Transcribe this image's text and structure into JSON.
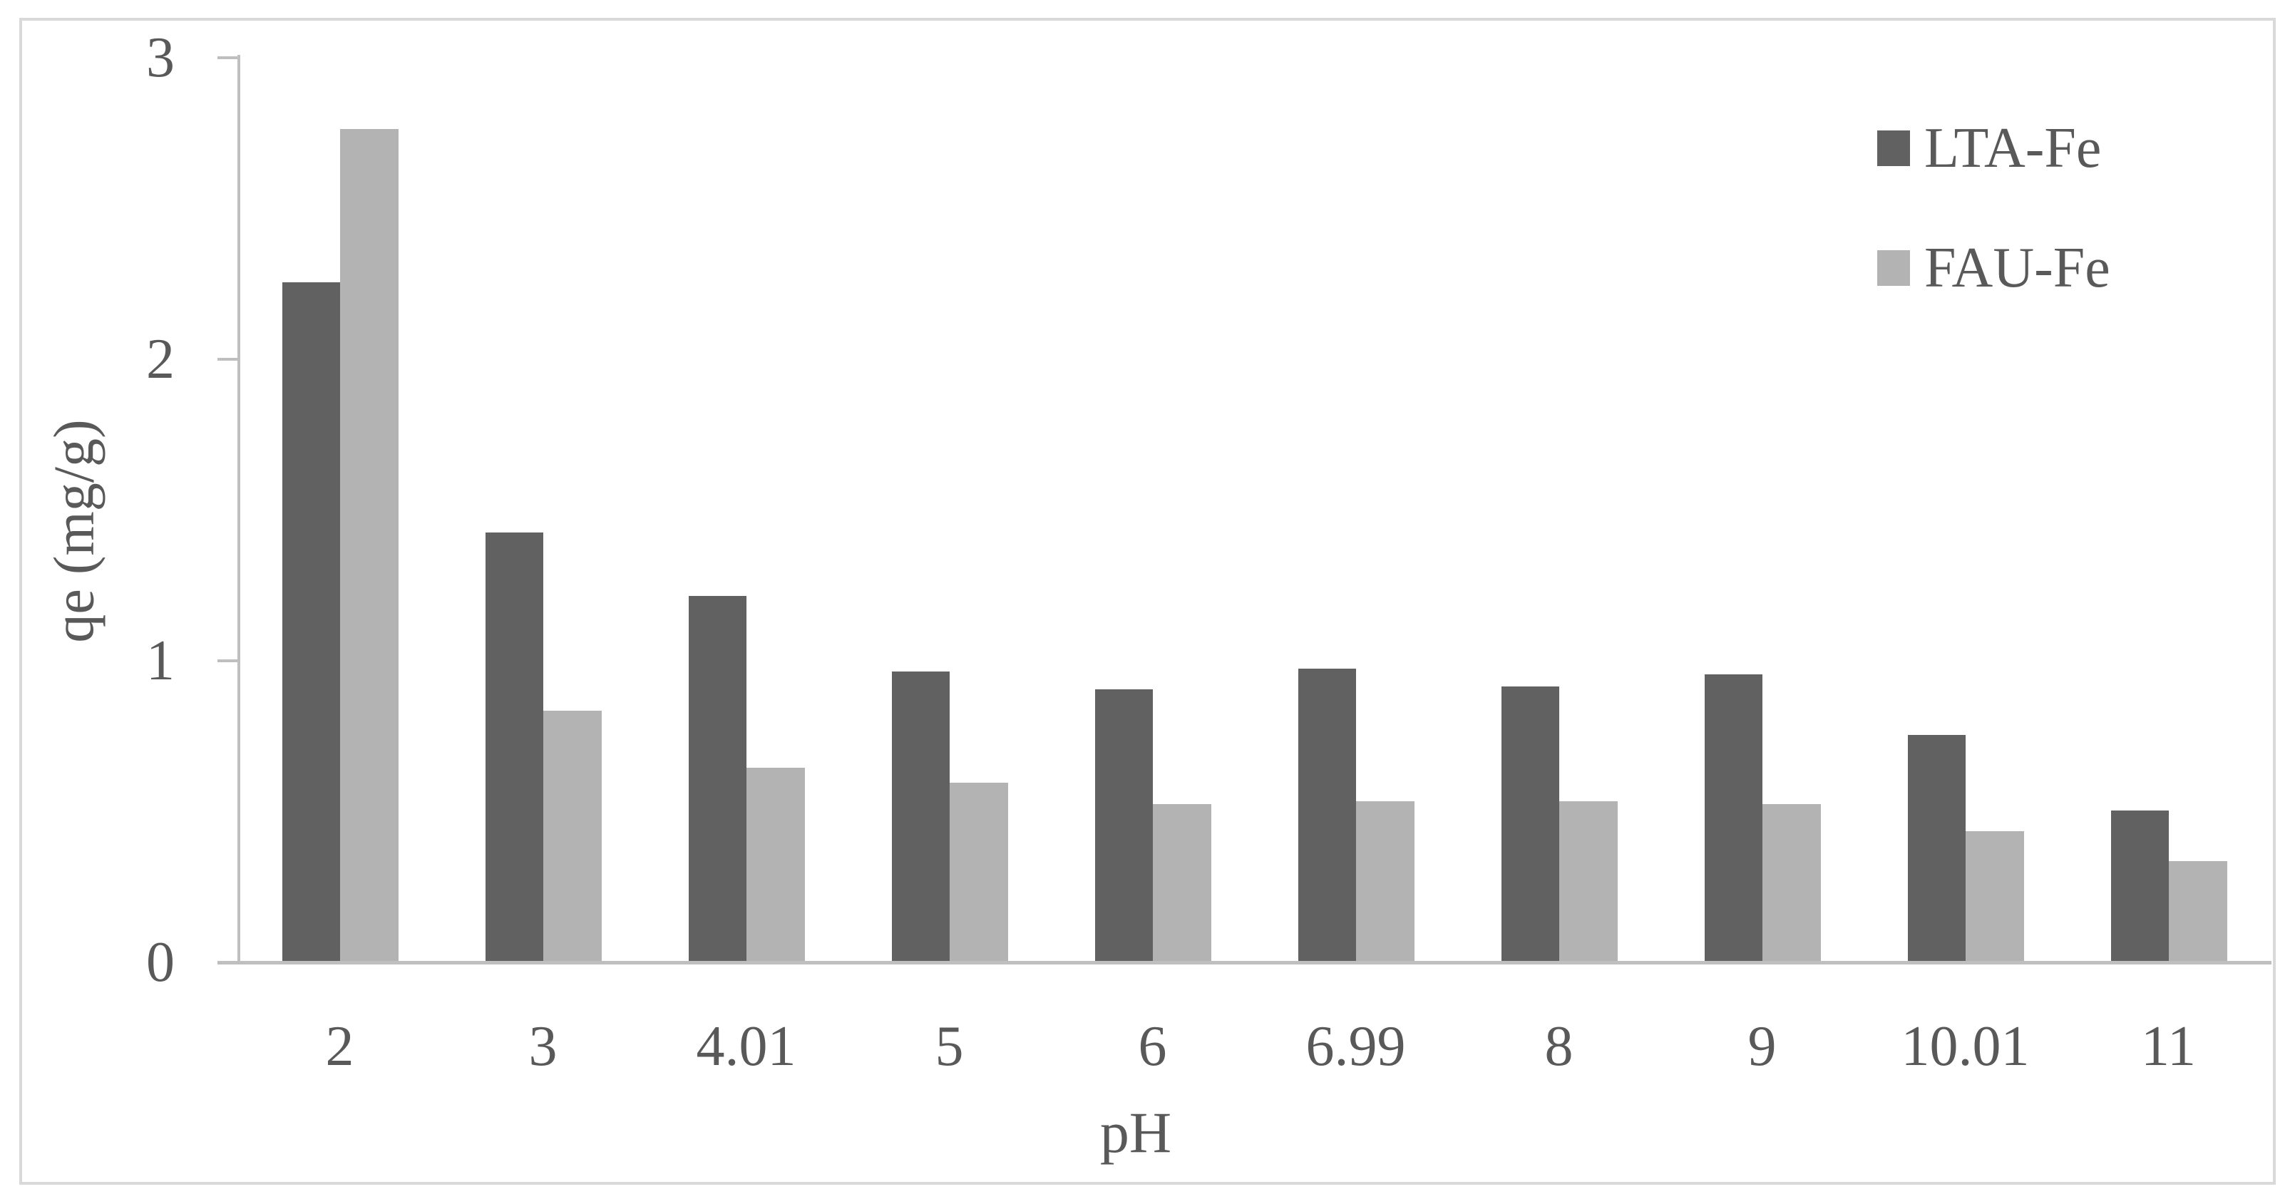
{
  "chart_data": {
    "type": "bar",
    "title": "",
    "xlabel": "pH",
    "ylabel": "qe (mg/g)",
    "categories": [
      "2",
      "3",
      "4.01",
      "5",
      "6",
      "6.99",
      "8",
      "9",
      "10.01",
      "11"
    ],
    "series": [
      {
        "name": "LTA-Fe",
        "color": "#616161",
        "values": [
          2.25,
          1.42,
          1.21,
          0.96,
          0.9,
          0.97,
          0.91,
          0.95,
          0.75,
          0.5
        ]
      },
      {
        "name": "FAU-Fe",
        "color": "#b3b3b3",
        "values": [
          2.76,
          0.83,
          0.64,
          0.59,
          0.52,
          0.53,
          0.53,
          0.52,
          0.43,
          0.33
        ]
      }
    ],
    "ylim": [
      0,
      3
    ],
    "yticks": [
      0,
      1,
      2,
      3
    ],
    "grid": false,
    "legend_position": "top-right"
  },
  "colors": {
    "text": "#595959",
    "axis": "#bfbfbf",
    "frame": "#d9d9d9",
    "background": "#ffffff"
  }
}
